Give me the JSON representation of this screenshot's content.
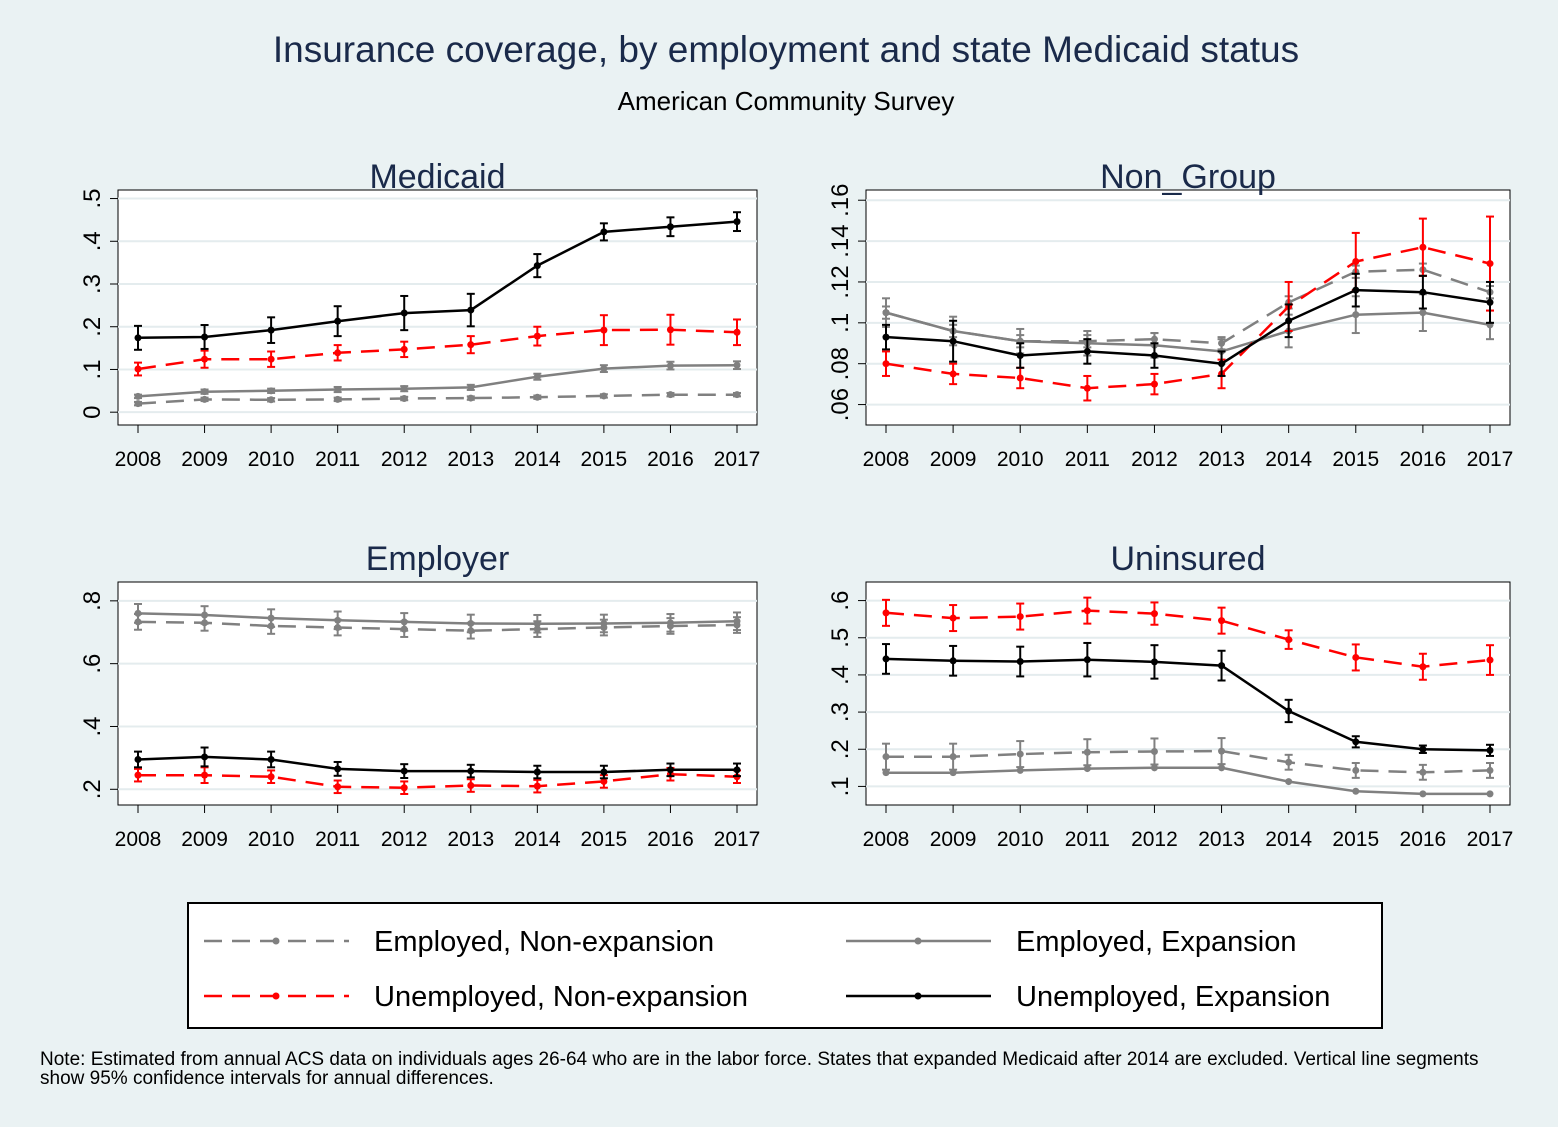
{
  "title": "Insurance coverage, by employment and state Medicaid status",
  "subtitle": "American Community Survey",
  "note": "Note: Estimated from annual ACS data on individuals ages 26-64 who are in the labor force. States that expanded Medicaid after 2014 are excluded. Vertical line segments show 95% confidence intervals for annual differences.",
  "colors": {
    "background": "#eaf2f3",
    "title": "#1a2a4a",
    "grey": "#808080",
    "red": "#ff0000",
    "black": "#000000"
  },
  "legend": [
    {
      "label": "Employed, Non-expansion",
      "color": "#808080",
      "dash": true
    },
    {
      "label": "Employed, Expansion",
      "color": "#808080",
      "dash": false
    },
    {
      "label": "Unemployed, Non-expansion",
      "color": "#ff0000",
      "dash": true
    },
    {
      "label": "Unemployed, Expansion",
      "color": "#000000",
      "dash": false
    }
  ],
  "chart_data": [
    {
      "type": "line",
      "title": "Medicaid",
      "x": [
        2008,
        2009,
        2010,
        2011,
        2012,
        2013,
        2014,
        2015,
        2016,
        2017
      ],
      "ylim": [
        -0.03,
        0.52
      ],
      "yticks": [
        0,
        0.1,
        0.2,
        0.3,
        0.4,
        0.5
      ],
      "ytick_labels": [
        "0",
        ".1",
        ".2",
        ".3",
        ".4",
        ".5"
      ],
      "series": [
        {
          "name": "Employed, Non-expansion",
          "values": [
            0.02,
            0.03,
            0.029,
            0.03,
            0.032,
            0.033,
            0.035,
            0.038,
            0.041,
            0.041
          ],
          "ci": [
            0.004,
            0.004,
            0.004,
            0.004,
            0.004,
            0.004,
            0.004,
            0.004,
            0.004,
            0.004
          ]
        },
        {
          "name": "Employed, Expansion",
          "values": [
            0.037,
            0.048,
            0.05,
            0.053,
            0.055,
            0.058,
            0.083,
            0.102,
            0.109,
            0.11
          ],
          "ci": [
            0.004,
            0.005,
            0.005,
            0.006,
            0.006,
            0.006,
            0.007,
            0.008,
            0.009,
            0.009
          ]
        },
        {
          "name": "Unemployed, Non-expansion",
          "values": [
            0.101,
            0.124,
            0.124,
            0.139,
            0.147,
            0.158,
            0.178,
            0.192,
            0.193,
            0.187
          ],
          "ci": [
            0.015,
            0.02,
            0.018,
            0.018,
            0.018,
            0.02,
            0.022,
            0.035,
            0.035,
            0.03
          ]
        },
        {
          "name": "Unemployed, Expansion",
          "values": [
            0.174,
            0.176,
            0.192,
            0.213,
            0.232,
            0.239,
            0.343,
            0.422,
            0.434,
            0.446
          ],
          "ci": [
            0.028,
            0.028,
            0.03,
            0.035,
            0.04,
            0.038,
            0.027,
            0.02,
            0.022,
            0.022
          ]
        }
      ]
    },
    {
      "type": "line",
      "title": "Non_Group",
      "x": [
        2008,
        2009,
        2010,
        2011,
        2012,
        2013,
        2014,
        2015,
        2016,
        2017
      ],
      "ylim": [
        0.05,
        0.165
      ],
      "yticks": [
        0.06,
        0.08,
        0.1,
        0.12,
        0.14,
        0.16
      ],
      "ytick_labels": [
        ".06",
        ".08",
        ".1",
        ".12",
        ".14",
        ".16"
      ],
      "series": [
        {
          "name": "Employed, Non-expansion",
          "values": [
            0.105,
            0.096,
            0.091,
            0.091,
            0.092,
            0.09,
            0.11,
            0.125,
            0.126,
            0.115
          ],
          "ci": [
            0.003,
            0.003,
            0.003,
            0.003,
            0.003,
            0.003,
            0.003,
            0.003,
            0.003,
            0.003
          ]
        },
        {
          "name": "Employed, Expansion",
          "values": [
            0.105,
            0.096,
            0.091,
            0.09,
            0.089,
            0.086,
            0.096,
            0.104,
            0.105,
            0.099
          ],
          "ci": [
            0.007,
            0.007,
            0.006,
            0.006,
            0.006,
            0.006,
            0.008,
            0.009,
            0.009,
            0.007
          ]
        },
        {
          "name": "Unemployed, Non-expansion",
          "values": [
            0.08,
            0.075,
            0.073,
            0.068,
            0.07,
            0.075,
            0.108,
            0.13,
            0.137,
            0.129
          ],
          "ci": [
            0.006,
            0.005,
            0.005,
            0.006,
            0.005,
            0.007,
            0.012,
            0.014,
            0.014,
            0.023
          ]
        },
        {
          "name": "Unemployed, Expansion",
          "values": [
            0.093,
            0.091,
            0.084,
            0.086,
            0.084,
            0.08,
            0.101,
            0.116,
            0.115,
            0.11
          ],
          "ci": [
            0.006,
            0.01,
            0.006,
            0.006,
            0.006,
            0.006,
            0.008,
            0.008,
            0.008,
            0.01
          ]
        }
      ]
    },
    {
      "type": "line",
      "title": "Employer",
      "x": [
        2008,
        2009,
        2010,
        2011,
        2012,
        2013,
        2014,
        2015,
        2016,
        2017
      ],
      "ylim": [
        0.15,
        0.86
      ],
      "yticks": [
        0.2,
        0.4,
        0.6,
        0.8
      ],
      "ytick_labels": [
        ".2",
        ".4",
        ".6",
        ".8"
      ],
      "series": [
        {
          "name": "Employed, Non-expansion",
          "values": [
            0.733,
            0.73,
            0.72,
            0.715,
            0.71,
            0.705,
            0.71,
            0.715,
            0.72,
            0.723
          ],
          "ci": [
            0.025,
            0.025,
            0.025,
            0.025,
            0.025,
            0.025,
            0.025,
            0.025,
            0.025,
            0.025
          ]
        },
        {
          "name": "Employed, Expansion",
          "values": [
            0.76,
            0.755,
            0.745,
            0.738,
            0.733,
            0.728,
            0.727,
            0.728,
            0.73,
            0.735
          ],
          "ci": [
            0.03,
            0.028,
            0.028,
            0.028,
            0.028,
            0.028,
            0.028,
            0.028,
            0.028,
            0.028
          ]
        },
        {
          "name": "Unemployed, Non-expansion",
          "values": [
            0.245,
            0.245,
            0.24,
            0.208,
            0.205,
            0.212,
            0.21,
            0.225,
            0.248,
            0.24
          ],
          "ci": [
            0.02,
            0.025,
            0.02,
            0.02,
            0.02,
            0.02,
            0.02,
            0.02,
            0.02,
            0.02
          ]
        },
        {
          "name": "Unemployed, Expansion",
          "values": [
            0.295,
            0.303,
            0.295,
            0.265,
            0.258,
            0.258,
            0.255,
            0.255,
            0.262,
            0.262
          ],
          "ci": [
            0.025,
            0.03,
            0.025,
            0.022,
            0.022,
            0.02,
            0.02,
            0.02,
            0.02,
            0.02
          ]
        }
      ]
    },
    {
      "type": "line",
      "title": "Uninsured",
      "x": [
        2008,
        2009,
        2010,
        2011,
        2012,
        2013,
        2014,
        2015,
        2016,
        2017
      ],
      "ylim": [
        0.05,
        0.65
      ],
      "yticks": [
        0.1,
        0.2,
        0.3,
        0.4,
        0.5,
        0.6
      ],
      "ytick_labels": [
        ".1",
        ".2",
        ".3",
        ".4",
        ".5",
        ".6"
      ],
      "series": [
        {
          "name": "Employed, Non-expansion",
          "values": [
            0.18,
            0.18,
            0.187,
            0.192,
            0.194,
            0.195,
            0.165,
            0.143,
            0.138,
            0.143
          ],
          "ci": [
            0.035,
            0.035,
            0.035,
            0.035,
            0.035,
            0.035,
            0.02,
            0.02,
            0.02,
            0.02
          ]
        },
        {
          "name": "Employed, Expansion",
          "values": [
            0.137,
            0.137,
            0.143,
            0.148,
            0.15,
            0.15,
            0.113,
            0.087,
            0.08,
            0.08
          ]
        },
        {
          "name": "Unemployed, Non-expansion",
          "values": [
            0.567,
            0.553,
            0.557,
            0.573,
            0.565,
            0.546,
            0.495,
            0.447,
            0.422,
            0.44
          ],
          "ci": [
            0.035,
            0.035,
            0.035,
            0.035,
            0.03,
            0.035,
            0.025,
            0.035,
            0.035,
            0.04
          ]
        },
        {
          "name": "Unemployed, Expansion",
          "values": [
            0.443,
            0.438,
            0.436,
            0.441,
            0.435,
            0.425,
            0.303,
            0.22,
            0.2,
            0.197
          ],
          "ci": [
            0.04,
            0.04,
            0.04,
            0.045,
            0.045,
            0.04,
            0.03,
            0.015,
            0.01,
            0.015
          ]
        }
      ]
    }
  ]
}
